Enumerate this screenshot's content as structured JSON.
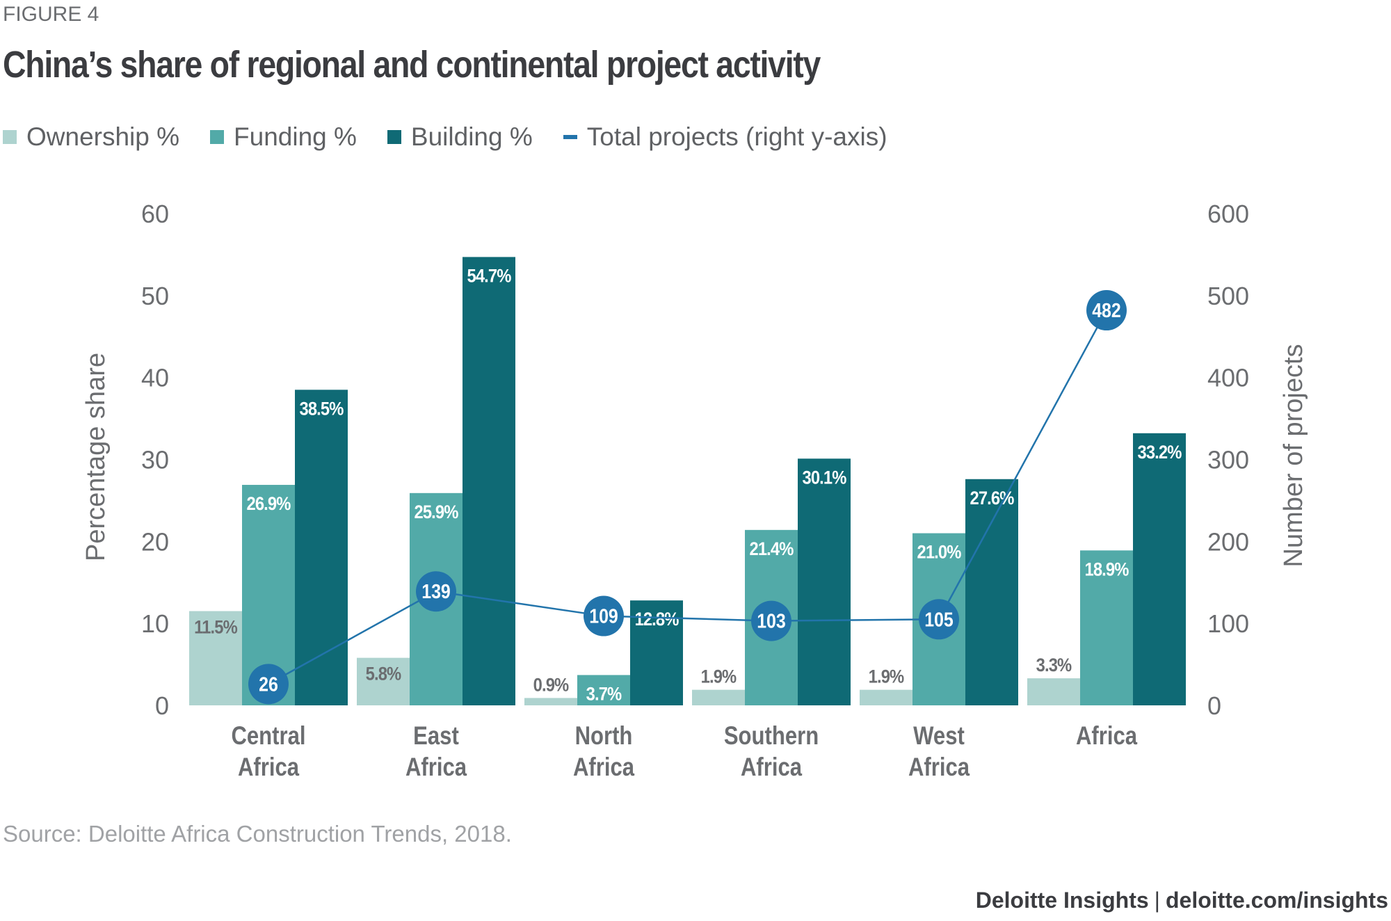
{
  "figure_label": "FIGURE 4",
  "title": "China’s share of regional and continental project activity",
  "legend": [
    {
      "label": "Ownership %",
      "color": "#aed3cf",
      "kind": "square"
    },
    {
      "label": "Funding %",
      "color": "#52aaa8",
      "kind": "square"
    },
    {
      "label": "Building %",
      "color": "#0f6a75",
      "kind": "square"
    },
    {
      "label": "Total projects (right y-axis)",
      "color": "#2274ab",
      "kind": "line"
    }
  ],
  "source": "Source: Deloitte Africa Construction Trends, 2018.",
  "footer": {
    "brand": "Deloitte Insights",
    "separator": "|",
    "url": "deloitte.com/insights"
  },
  "chart_data": {
    "type": "bar",
    "title": "China’s share of regional and continental project activity",
    "categories": [
      [
        "Central",
        "Africa"
      ],
      [
        "East",
        "Africa"
      ],
      [
        "North",
        "Africa"
      ],
      [
        "Southern",
        "Africa"
      ],
      [
        "West",
        "Africa"
      ],
      [
        "Africa"
      ]
    ],
    "series": [
      {
        "name": "Ownership %",
        "type": "bar",
        "axis": "left",
        "color": "#aed3cf",
        "values": [
          11.5,
          5.8,
          0.9,
          1.9,
          1.9,
          3.3
        ],
        "labels": [
          "11.5%",
          "5.8%",
          "0.9%",
          "1.9%",
          "1.9%",
          "3.3%"
        ],
        "label_color": "#6b6d70"
      },
      {
        "name": "Funding %",
        "type": "bar",
        "axis": "left",
        "color": "#52aaa8",
        "values": [
          26.9,
          25.9,
          3.7,
          21.4,
          21.0,
          18.9
        ],
        "labels": [
          "26.9%",
          "25.9%",
          "3.7%",
          "21.4%",
          "21.0%",
          "18.9%"
        ],
        "label_color": "#ffffff"
      },
      {
        "name": "Building %",
        "type": "bar",
        "axis": "left",
        "color": "#0f6a75",
        "values": [
          38.5,
          54.7,
          12.8,
          30.1,
          27.6,
          33.2
        ],
        "labels": [
          "38.5%",
          "54.7%",
          "12.8%",
          "30.1%",
          "27.6%",
          "33.2%"
        ],
        "label_color": "#ffffff"
      },
      {
        "name": "Total projects (right y-axis)",
        "type": "line",
        "axis": "right",
        "color": "#2274ab",
        "values": [
          26,
          139,
          109,
          103,
          105,
          482
        ],
        "labels": [
          "26",
          "139",
          "109",
          "103",
          "105",
          "482"
        ],
        "label_color": "#ffffff"
      }
    ],
    "ylabel": "Percentage share",
    "ylim": [
      0,
      60
    ],
    "yticks": [
      "0",
      "10",
      "20",
      "30",
      "40",
      "50",
      "60"
    ],
    "y2label": "Number of projects",
    "y2lim": [
      0,
      600
    ],
    "y2ticks": [
      "0",
      "100",
      "200",
      "300",
      "400",
      "500",
      "600"
    ],
    "grid": false,
    "legend_position": "top-left"
  }
}
